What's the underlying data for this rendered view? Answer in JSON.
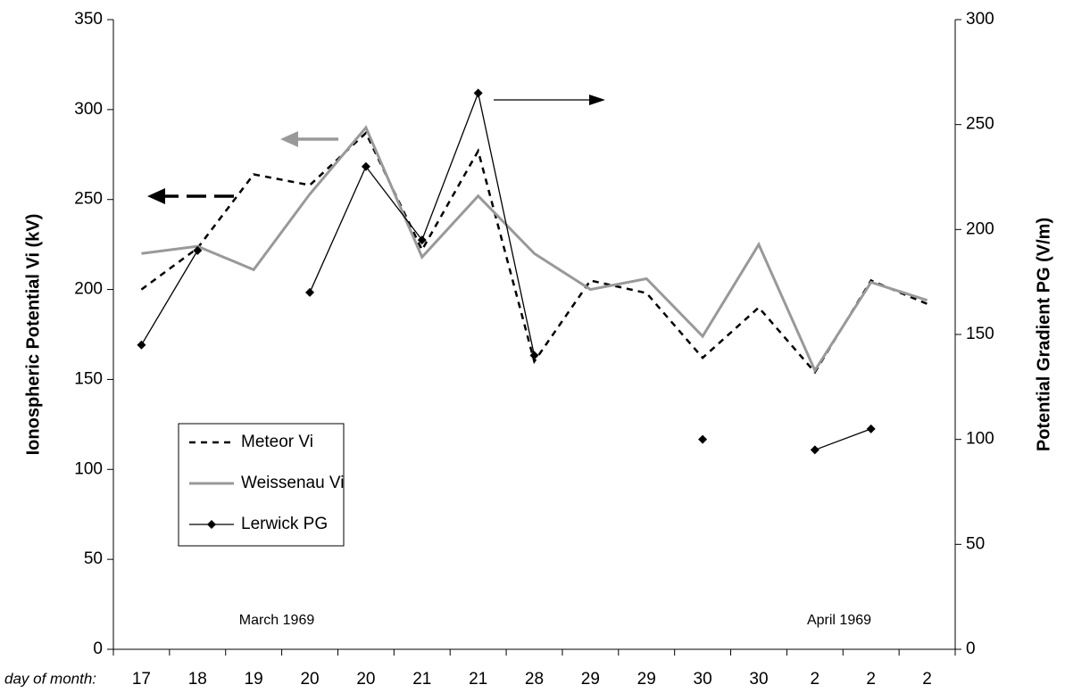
{
  "chart_data": {
    "type": "line",
    "y_label": "Ionospheric Potential Vi (kV)",
    "y2_label": "Potential Gradient PG (V/m)",
    "x_label": "day of month:",
    "annotations": [
      "March 1969",
      "April 1969"
    ],
    "categories": [
      "17",
      "18",
      "19",
      "20",
      "20",
      "21",
      "21",
      "28",
      "29",
      "29",
      "30",
      "30",
      "2",
      "2",
      "2"
    ],
    "series": [
      {
        "name": "Meteor Vi",
        "color": "#000000",
        "style": "dashed",
        "values": [
          200,
          223,
          264,
          258,
          287,
          222,
          277,
          160,
          205,
          198,
          162,
          190,
          154,
          205,
          192
        ]
      },
      {
        "name": "Weissenau Vi",
        "color": "#999999",
        "style": "solid",
        "values": [
          220,
          224,
          211,
          253,
          290,
          218,
          252,
          220,
          200,
          206,
          174,
          225,
          155,
          204,
          194
        ]
      },
      {
        "name": "Lerwick PG",
        "color": "#000000",
        "style": "marker",
        "axis": "y2",
        "values": [
          145,
          190,
          null,
          170,
          230,
          195,
          265,
          140,
          null,
          null,
          100,
          null,
          95,
          105,
          null
        ]
      }
    ],
    "ylim": [
      0,
      350
    ],
    "yticks": [
      0,
      50,
      100,
      150,
      200,
      250,
      300,
      350
    ],
    "y2lim": [
      0,
      300
    ],
    "y2ticks": [
      0,
      50,
      100,
      150,
      200,
      250,
      300
    ],
    "grid": false
  }
}
